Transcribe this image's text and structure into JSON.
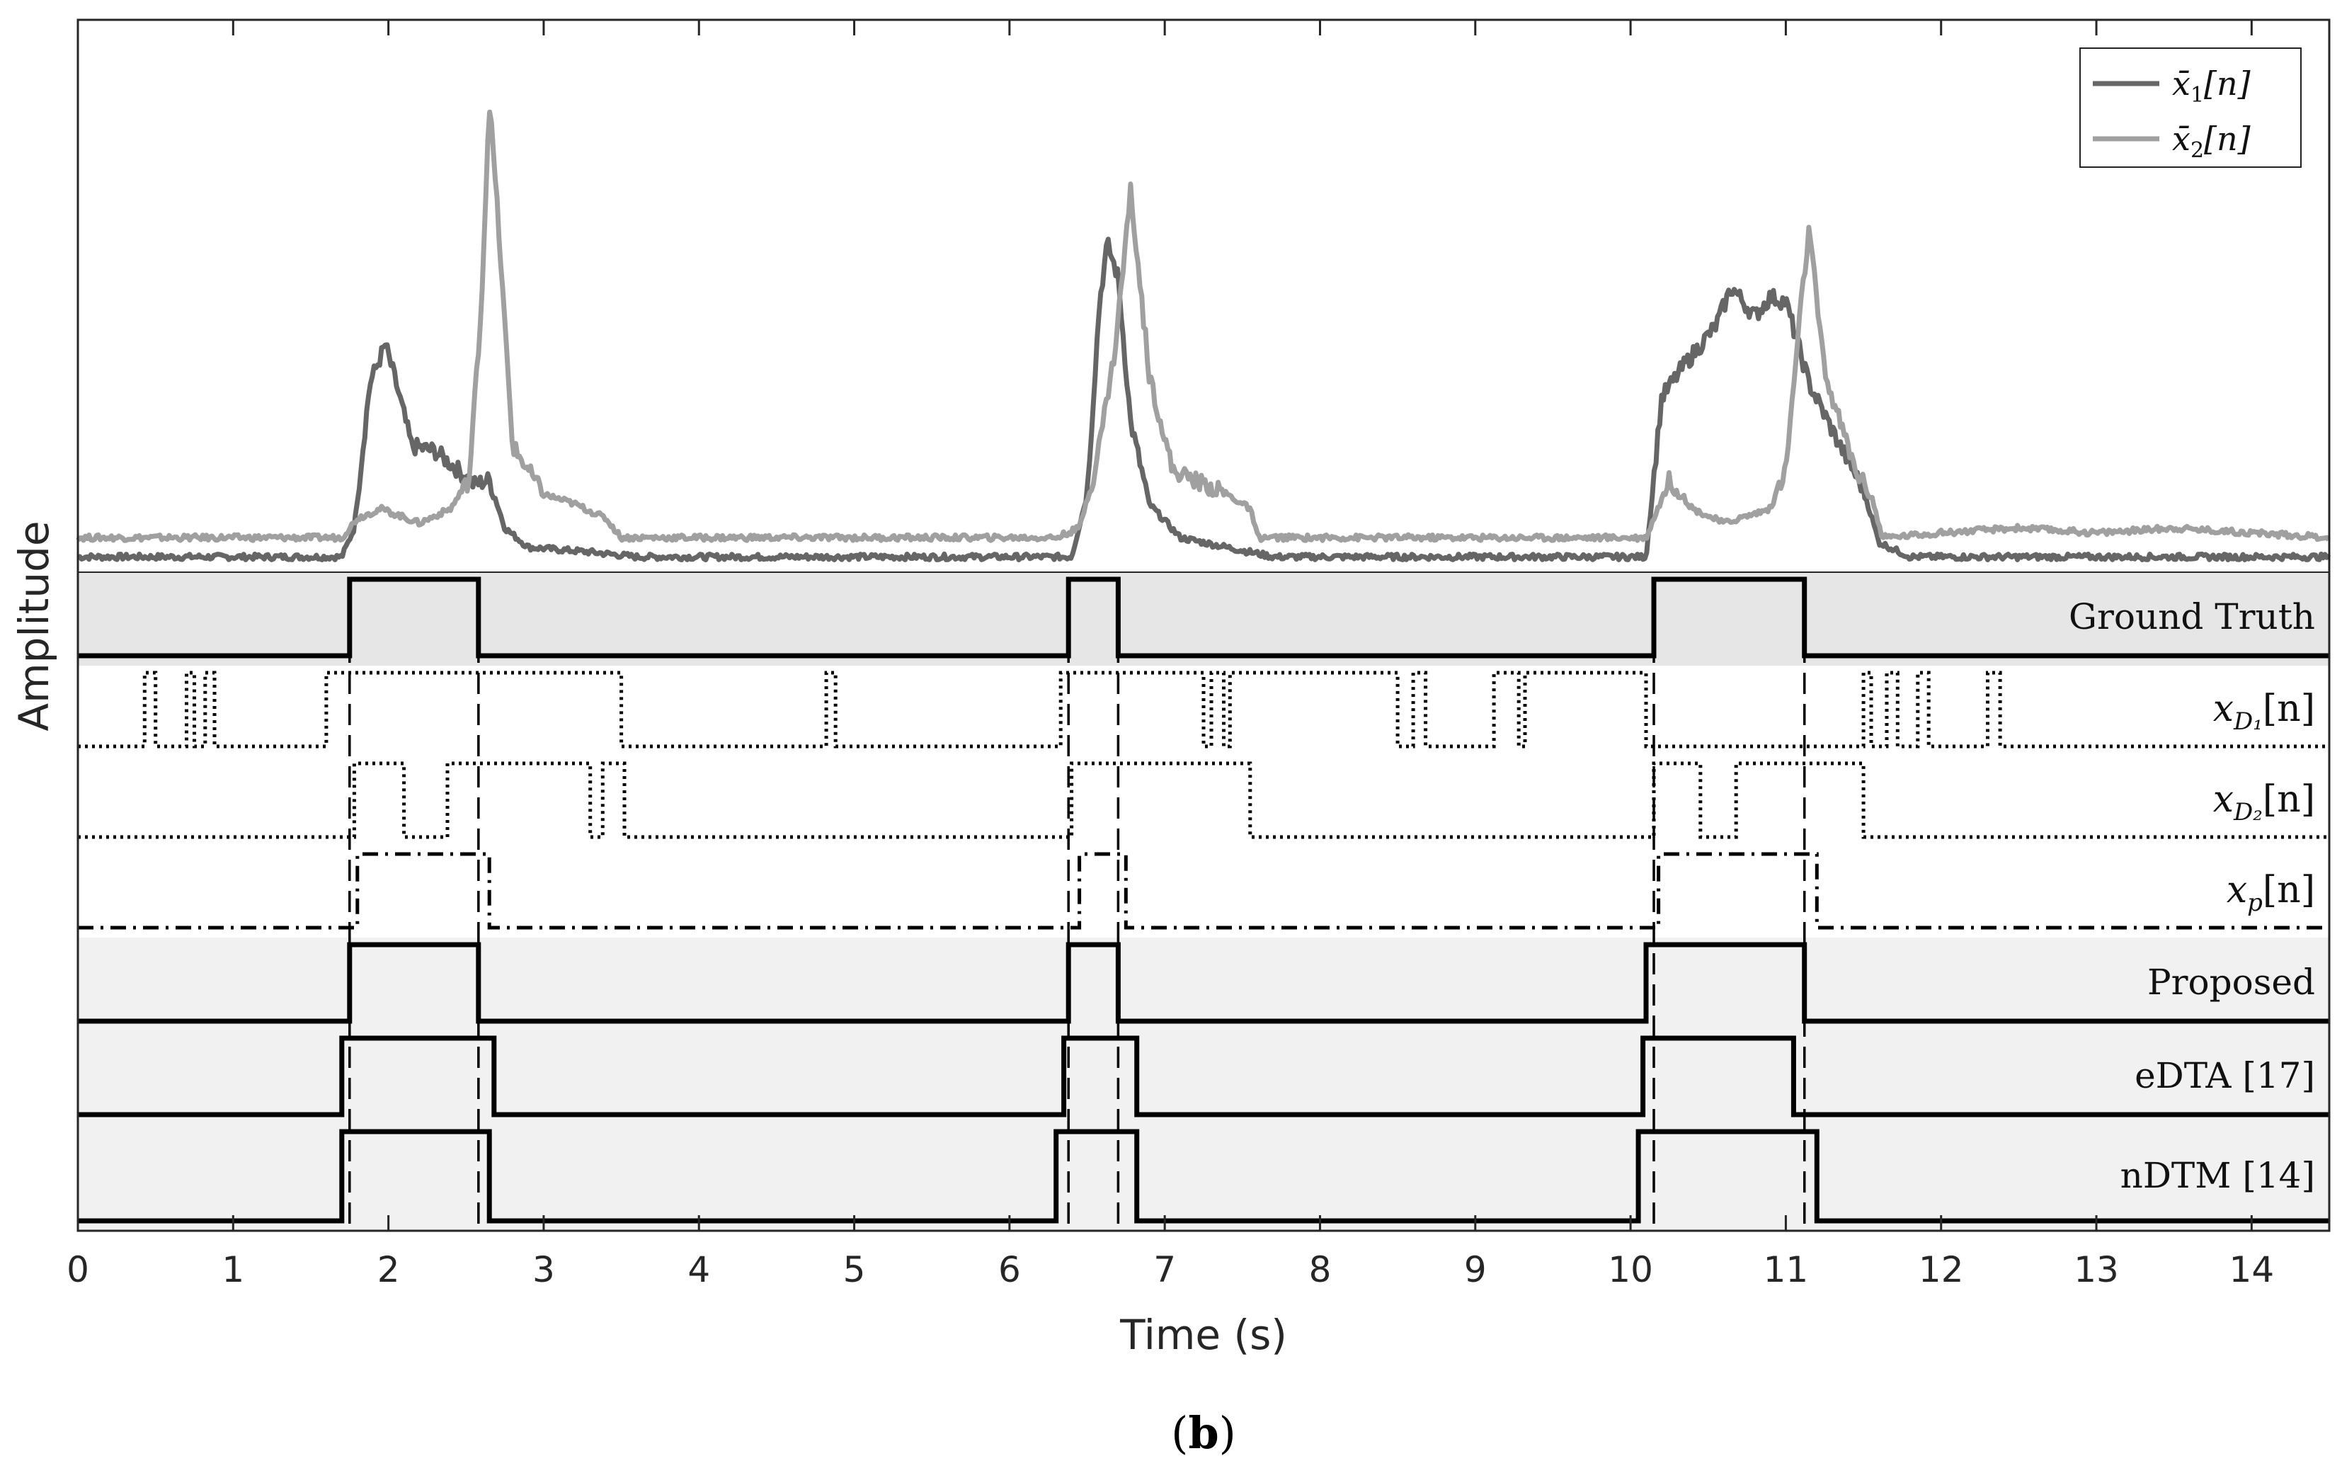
{
  "figure": {
    "caption_open": "(",
    "caption_letter": "b",
    "caption_close": ")"
  },
  "chart_data": {
    "type": "line",
    "xlabel": "Time (s)",
    "ylabel": "Amplitude",
    "xlim": [
      0,
      14.5
    ],
    "xticks": [
      0,
      1,
      2,
      3,
      4,
      5,
      6,
      7,
      8,
      9,
      10,
      11,
      12,
      13,
      14
    ],
    "grid": false,
    "legend_position": "top-right",
    "colors": {
      "x1": "#666666",
      "x2": "#a0a0a0",
      "row_shade": "#e6e6e6",
      "row_shade_light": "#f1f1f1",
      "line": "#000000"
    },
    "signals": [
      {
        "name": "x̄₁[n]",
        "legend_base": "x̄",
        "legend_sub": "1",
        "legend_tail": "[n]",
        "color": "#666666",
        "baseline": 0.02,
        "points": [
          [
            0,
            0.02
          ],
          [
            1.7,
            0.02
          ],
          [
            1.78,
            0.08
          ],
          [
            1.88,
            0.38
          ],
          [
            1.98,
            0.46
          ],
          [
            2.05,
            0.38
          ],
          [
            2.15,
            0.25
          ],
          [
            2.3,
            0.24
          ],
          [
            2.45,
            0.2
          ],
          [
            2.55,
            0.17
          ],
          [
            2.65,
            0.18
          ],
          [
            2.75,
            0.08
          ],
          [
            2.9,
            0.04
          ],
          [
            3.3,
            0.03
          ],
          [
            3.6,
            0.02
          ],
          [
            6.4,
            0.02
          ],
          [
            6.5,
            0.15
          ],
          [
            6.58,
            0.55
          ],
          [
            6.63,
            0.67
          ],
          [
            6.7,
            0.6
          ],
          [
            6.78,
            0.3
          ],
          [
            6.9,
            0.13
          ],
          [
            7.1,
            0.06
          ],
          [
            7.4,
            0.04
          ],
          [
            7.7,
            0.02
          ],
          [
            10.1,
            0.02
          ],
          [
            10.2,
            0.35
          ],
          [
            10.35,
            0.42
          ],
          [
            10.55,
            0.5
          ],
          [
            10.65,
            0.58
          ],
          [
            10.8,
            0.52
          ],
          [
            10.9,
            0.56
          ],
          [
            11.0,
            0.55
          ],
          [
            11.15,
            0.38
          ],
          [
            11.35,
            0.25
          ],
          [
            11.5,
            0.16
          ],
          [
            11.6,
            0.05
          ],
          [
            11.8,
            0.02
          ],
          [
            14.5,
            0.02
          ]
        ]
      },
      {
        "name": "x̄₂[n]",
        "legend_base": "x̄",
        "legend_sub": "2",
        "legend_tail": "[n]",
        "color": "#a0a0a0",
        "baseline": 0.06,
        "points": [
          [
            0,
            0.06
          ],
          [
            1.7,
            0.06
          ],
          [
            1.8,
            0.1
          ],
          [
            1.95,
            0.12
          ],
          [
            2.2,
            0.09
          ],
          [
            2.4,
            0.12
          ],
          [
            2.52,
            0.18
          ],
          [
            2.6,
            0.55
          ],
          [
            2.65,
            0.97
          ],
          [
            2.7,
            0.75
          ],
          [
            2.8,
            0.25
          ],
          [
            3.0,
            0.15
          ],
          [
            3.2,
            0.13
          ],
          [
            3.4,
            0.1
          ],
          [
            3.5,
            0.06
          ],
          [
            6.3,
            0.06
          ],
          [
            6.45,
            0.08
          ],
          [
            6.55,
            0.2
          ],
          [
            6.68,
            0.45
          ],
          [
            6.78,
            0.78
          ],
          [
            6.9,
            0.4
          ],
          [
            7.05,
            0.2
          ],
          [
            7.4,
            0.15
          ],
          [
            7.55,
            0.12
          ],
          [
            7.6,
            0.06
          ],
          [
            10.1,
            0.06
          ],
          [
            10.25,
            0.18
          ],
          [
            10.4,
            0.12
          ],
          [
            10.6,
            0.09
          ],
          [
            10.9,
            0.12
          ],
          [
            11.0,
            0.2
          ],
          [
            11.1,
            0.55
          ],
          [
            11.15,
            0.7
          ],
          [
            11.25,
            0.4
          ],
          [
            11.45,
            0.2
          ],
          [
            11.55,
            0.15
          ],
          [
            11.62,
            0.06
          ],
          [
            12.0,
            0.07
          ],
          [
            12.5,
            0.08
          ],
          [
            13.0,
            0.07
          ],
          [
            13.5,
            0.08
          ],
          [
            14.5,
            0.06
          ]
        ]
      }
    ],
    "rows": [
      {
        "label": "Ground Truth",
        "style": "solid",
        "shaded": true,
        "shade": "dark",
        "transitions": [
          1.75,
          2.58,
          6.38,
          6.7,
          10.15,
          11.12
        ]
      },
      {
        "label_base": "x",
        "label_sub": "D₁",
        "label_tail": "[n]",
        "style": "dotted",
        "shaded": false,
        "transitions": [
          0.43,
          0.5,
          0.7,
          0.75,
          0.82,
          0.88,
          1.6,
          3.5,
          4.82,
          4.88,
          6.33,
          7.25,
          7.3,
          7.38,
          7.42,
          8.5,
          8.6,
          8.68,
          9.12,
          9.28,
          9.32,
          10.1,
          11.5,
          11.55,
          11.65,
          11.72,
          11.85,
          11.92,
          12.3,
          12.38
        ]
      },
      {
        "label_base": "x",
        "label_sub": "D₂",
        "label_tail": "[n]",
        "style": "dotted",
        "shaded": false,
        "transitions": [
          1.78,
          2.1,
          2.38,
          3.3,
          3.38,
          3.52,
          6.4,
          7.55,
          10.15,
          10.45,
          10.68,
          11.5
        ]
      },
      {
        "label_base": "x",
        "label_sub": "p",
        "label_tail": "[n]",
        "style": "dashdot",
        "shaded": false,
        "transitions": [
          1.8,
          2.65,
          6.45,
          6.75,
          10.18,
          11.2
        ]
      },
      {
        "label": "Proposed",
        "style": "solid",
        "shaded": true,
        "shade": "light",
        "transitions": [
          1.75,
          2.58,
          6.38,
          6.7,
          10.1,
          11.12
        ]
      },
      {
        "label": "eDTA [17]",
        "style": "solid",
        "shaded": true,
        "shade": "light",
        "transitions": [
          1.7,
          2.68,
          6.35,
          6.82,
          10.08,
          11.05
        ]
      },
      {
        "label": "nDTM [14]",
        "style": "solid",
        "shaded": true,
        "shade": "light",
        "transitions": [
          1.7,
          2.65,
          6.3,
          6.82,
          10.05,
          11.2
        ]
      }
    ],
    "reference_lines": [
      1.75,
      2.58,
      6.38,
      6.7,
      10.15,
      11.12
    ]
  }
}
